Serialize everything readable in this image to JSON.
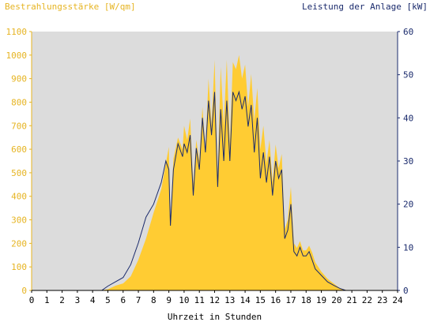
{
  "chart_data": {
    "type": "area",
    "xlabel": "Uhrzeit in Stunden",
    "ylabel_left": "Bestrahlungsstärke [W/qm]",
    "ylabel_right": "Leistung der Anlage [kW]",
    "x_ticks": [
      "0",
      "1",
      "2",
      "3",
      "4",
      "5",
      "6",
      "7",
      "8",
      "9",
      "10",
      "11",
      "12",
      "13",
      "14",
      "15",
      "16",
      "17",
      "18",
      "19",
      "20",
      "21",
      "22",
      "23",
      "24"
    ],
    "y_left_ticks": [
      "0",
      "100",
      "200",
      "300",
      "400",
      "500",
      "600",
      "700",
      "800",
      "900",
      "1000",
      "1100"
    ],
    "y_right_ticks": [
      "0",
      "10",
      "20",
      "30",
      "40",
      "50",
      "60"
    ],
    "xlim": [
      0,
      24
    ],
    "ylim_left": [
      0,
      1100
    ],
    "ylim_right": [
      0,
      60
    ],
    "grid": false,
    "colors": {
      "plot_background": "#dcdcdc",
      "irradiance_fill": "#ffcc33",
      "power_line": "#1a2a6c",
      "left_axis_text": "#e6b422",
      "right_axis_text": "#1a2a6c"
    },
    "series": [
      {
        "name": "Bestrahlungsstärke [W/qm]",
        "axis": "left",
        "style": "filled-area",
        "points": [
          [
            0,
            0
          ],
          [
            4.5,
            0
          ],
          [
            5,
            5
          ],
          [
            5.5,
            20
          ],
          [
            6,
            30
          ],
          [
            6.5,
            60
          ],
          [
            7,
            130
          ],
          [
            7.5,
            220
          ],
          [
            8,
            330
          ],
          [
            8.5,
            430
          ],
          [
            8.75,
            520
          ],
          [
            9,
            610
          ],
          [
            9.1,
            300
          ],
          [
            9.3,
            560
          ],
          [
            9.6,
            650
          ],
          [
            9.9,
            600
          ],
          [
            10,
            700
          ],
          [
            10.2,
            640
          ],
          [
            10.4,
            730
          ],
          [
            10.6,
            450
          ],
          [
            10.8,
            640
          ],
          [
            11,
            550
          ],
          [
            11.2,
            780
          ],
          [
            11.4,
            600
          ],
          [
            11.6,
            900
          ],
          [
            11.8,
            700
          ],
          [
            12,
            980
          ],
          [
            12.2,
            480
          ],
          [
            12.4,
            950
          ],
          [
            12.6,
            700
          ],
          [
            12.8,
            980
          ],
          [
            13,
            620
          ],
          [
            13.2,
            970
          ],
          [
            13.4,
            940
          ],
          [
            13.6,
            1000
          ],
          [
            13.8,
            900
          ],
          [
            14,
            960
          ],
          [
            14.2,
            780
          ],
          [
            14.4,
            920
          ],
          [
            14.6,
            720
          ],
          [
            14.8,
            860
          ],
          [
            15,
            600
          ],
          [
            15.2,
            700
          ],
          [
            15.4,
            540
          ],
          [
            15.6,
            640
          ],
          [
            15.8,
            460
          ],
          [
            16,
            620
          ],
          [
            16.2,
            520
          ],
          [
            16.4,
            580
          ],
          [
            16.6,
            260
          ],
          [
            16.8,
            300
          ],
          [
            17,
            440
          ],
          [
            17.2,
            200
          ],
          [
            17.4,
            180
          ],
          [
            17.6,
            210
          ],
          [
            17.8,
            170
          ],
          [
            18,
            170
          ],
          [
            18.2,
            190
          ],
          [
            18.4,
            160
          ],
          [
            18.6,
            120
          ],
          [
            19,
            80
          ],
          [
            19.4,
            50
          ],
          [
            19.8,
            30
          ],
          [
            20.2,
            10
          ],
          [
            20.6,
            2
          ],
          [
            21,
            0
          ],
          [
            24,
            0
          ]
        ]
      },
      {
        "name": "Leistung der Anlage [kW]",
        "axis": "right",
        "style": "line",
        "points": [
          [
            0,
            0
          ],
          [
            4.6,
            0
          ],
          [
            5,
            1
          ],
          [
            5.5,
            2
          ],
          [
            6,
            3
          ],
          [
            6.5,
            6
          ],
          [
            7,
            11
          ],
          [
            7.5,
            17
          ],
          [
            8,
            20
          ],
          [
            8.5,
            25
          ],
          [
            8.8,
            30
          ],
          [
            9,
            28
          ],
          [
            9.1,
            15
          ],
          [
            9.3,
            28
          ],
          [
            9.6,
            34
          ],
          [
            9.9,
            31
          ],
          [
            10,
            34
          ],
          [
            10.2,
            32
          ],
          [
            10.4,
            36
          ],
          [
            10.6,
            22
          ],
          [
            10.8,
            33
          ],
          [
            11,
            28
          ],
          [
            11.2,
            40
          ],
          [
            11.4,
            32
          ],
          [
            11.6,
            44
          ],
          [
            11.8,
            36
          ],
          [
            12,
            46
          ],
          [
            12.2,
            24
          ],
          [
            12.4,
            42
          ],
          [
            12.6,
            30
          ],
          [
            12.8,
            44
          ],
          [
            13,
            30
          ],
          [
            13.2,
            46
          ],
          [
            13.4,
            44
          ],
          [
            13.6,
            46
          ],
          [
            13.8,
            42
          ],
          [
            14,
            45
          ],
          [
            14.2,
            38
          ],
          [
            14.4,
            43
          ],
          [
            14.6,
            32
          ],
          [
            14.8,
            40
          ],
          [
            15,
            26
          ],
          [
            15.2,
            32
          ],
          [
            15.4,
            25
          ],
          [
            15.6,
            31
          ],
          [
            15.8,
            22
          ],
          [
            16,
            30
          ],
          [
            16.2,
            26
          ],
          [
            16.4,
            28
          ],
          [
            16.6,
            12
          ],
          [
            16.8,
            14
          ],
          [
            17,
            20
          ],
          [
            17.2,
            9
          ],
          [
            17.4,
            8
          ],
          [
            17.6,
            10
          ],
          [
            17.8,
            8
          ],
          [
            18,
            8
          ],
          [
            18.2,
            9
          ],
          [
            18.4,
            7
          ],
          [
            18.6,
            5
          ],
          [
            19,
            3.5
          ],
          [
            19.4,
            2
          ],
          [
            19.8,
            1.2
          ],
          [
            20.2,
            0.5
          ],
          [
            20.6,
            0
          ],
          [
            24,
            0
          ]
        ]
      }
    ]
  }
}
